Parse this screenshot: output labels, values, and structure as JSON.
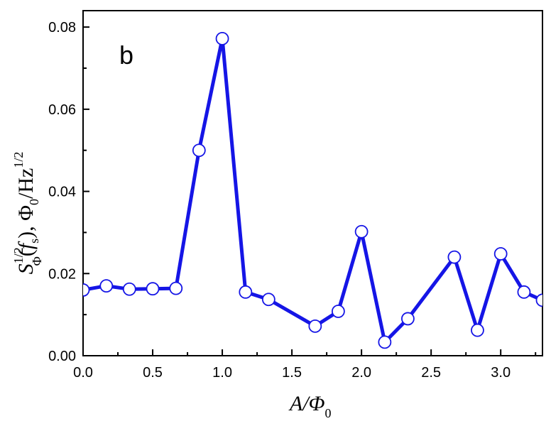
{
  "chart_data": {
    "type": "line",
    "panel_label": "b",
    "xlabel": {
      "main": "A/Φ",
      "sub": "0"
    },
    "ylabel": {
      "s": "S",
      "sup1": "1/2",
      "sub1": "Φ",
      "paren_open": "(",
      "f": "f",
      "sub_s": "s",
      "paren_close": "), Φ",
      "sub0": "0",
      "hz": "/Hz",
      "sup2": "1/2"
    },
    "xlim": [
      0.0,
      3.3
    ],
    "ylim": [
      0.0,
      0.084
    ],
    "xticks": [
      "0.0",
      "0.5",
      "1.0",
      "1.5",
      "2.0",
      "2.5",
      "3.0"
    ],
    "xtick_values": [
      0.0,
      0.5,
      1.0,
      1.5,
      2.0,
      2.5,
      3.0
    ],
    "yticks": [
      "0.00",
      "0.02",
      "0.04",
      "0.06",
      "0.08"
    ],
    "ytick_values": [
      0.0,
      0.02,
      0.04,
      0.06,
      0.08
    ],
    "line_color": "#1515e6",
    "marker_fill": "#ffffff",
    "series": [
      {
        "x": [
          0.0,
          0.167,
          0.333,
          0.5,
          0.667,
          0.833,
          1.0,
          1.167,
          1.333,
          1.667,
          1.833,
          2.0,
          2.167,
          2.333,
          2.667,
          2.833,
          3.0,
          3.167,
          3.3
        ],
        "y": [
          0.016,
          0.017,
          0.0162,
          0.0163,
          0.0164,
          0.05,
          0.0772,
          0.0155,
          0.0137,
          0.0072,
          0.0108,
          0.0302,
          0.0033,
          0.009,
          0.024,
          0.0062,
          0.0248,
          0.0155,
          0.0135
        ]
      }
    ]
  }
}
